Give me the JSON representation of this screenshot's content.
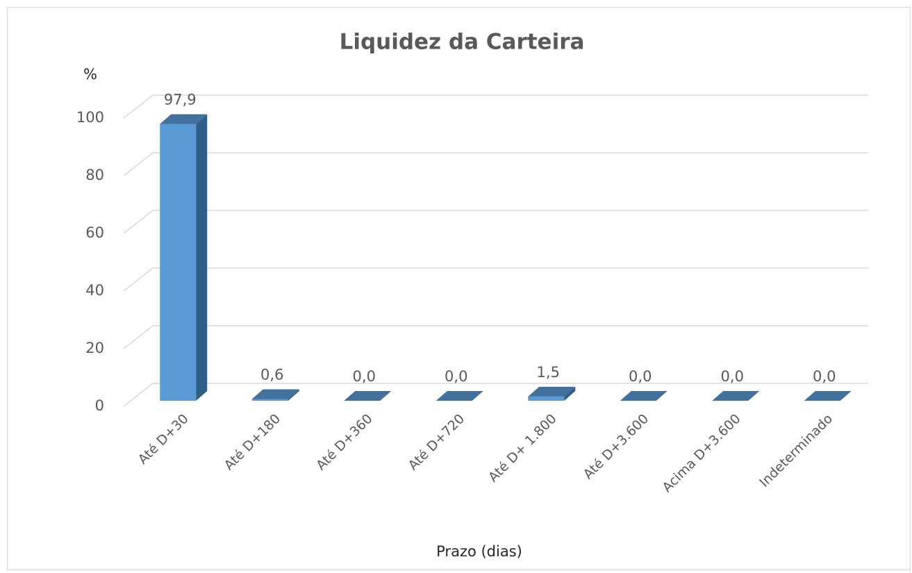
{
  "chart_data": {
    "type": "bar3d",
    "title": "Liquidez da Carteira",
    "y_label": "%",
    "x_label": "Prazo (dias)",
    "categories": [
      "Até D+30",
      "Até D+180",
      "Até D+360",
      "Até D+720",
      "Até D+ 1.800",
      "Até D+3.600",
      "Acima D+3.600",
      "Indeterminado"
    ],
    "values": [
      97.9,
      0.6,
      0.0,
      0.0,
      1.5,
      0.0,
      0.0,
      0.0
    ],
    "value_labels": [
      "97,9",
      "0,6",
      "0,0",
      "0,0",
      "1,5",
      "0,0",
      "0,0",
      "0,0"
    ],
    "color": "#5b9bd5",
    "ylim": [
      0,
      100
    ],
    "yticks": [
      0,
      20,
      40,
      60,
      80,
      100
    ],
    "grid": true
  }
}
